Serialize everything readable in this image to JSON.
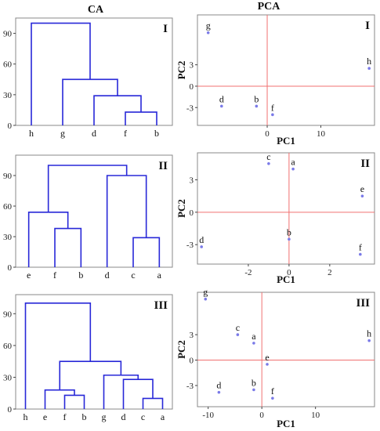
{
  "figure": {
    "col_titles": {
      "ca": "CA",
      "pca": "PCA"
    }
  },
  "chart_data": [
    {
      "type": "dendrogram",
      "panel": "I",
      "title": "CA",
      "ylim": [
        0,
        105
      ],
      "yticks": [
        0,
        30,
        60,
        90
      ],
      "leaves": [
        "h",
        "g",
        "d",
        "f",
        "b"
      ],
      "merges": [
        {
          "a": "f",
          "b": "b",
          "height": 13
        },
        {
          "a": "d",
          "b": "fb",
          "height": 29
        },
        {
          "a": "g",
          "b": "dfb",
          "height": 45
        },
        {
          "a": "h",
          "b": "gdfb",
          "height": 100
        }
      ]
    },
    {
      "type": "scatter",
      "panel": "I",
      "title": "PCA",
      "xlabel": "PC1",
      "ylabel": "PC2",
      "xlim": [
        -13,
        20
      ],
      "ylim": [
        -5.5,
        10
      ],
      "xticks": [
        0,
        10
      ],
      "yticks": [
        -3,
        0,
        3
      ],
      "points": [
        {
          "label": "g",
          "x": -11,
          "y": 7.5
        },
        {
          "label": "h",
          "x": 19,
          "y": 2.5
        },
        {
          "label": "d",
          "x": -8.5,
          "y": -2.8
        },
        {
          "label": "b",
          "x": -2,
          "y": -2.8
        },
        {
          "label": "f",
          "x": 1,
          "y": -4
        }
      ]
    },
    {
      "type": "dendrogram",
      "panel": "II",
      "ylim": [
        0,
        110
      ],
      "yticks": [
        0,
        30,
        60,
        90
      ],
      "leaves": [
        "e",
        "f",
        "b",
        "d",
        "c",
        "a"
      ],
      "merges": [
        {
          "a": "f",
          "b": "b",
          "height": 38
        },
        {
          "a": "e",
          "b": "fb",
          "height": 54
        },
        {
          "a": "c",
          "b": "a",
          "height": 29
        },
        {
          "a": "d",
          "b": "ca",
          "height": 90
        },
        {
          "a": "efb",
          "b": "dca",
          "height": 100
        }
      ]
    },
    {
      "type": "scatter",
      "panel": "II",
      "xlabel": "PC1",
      "ylabel": "PC2",
      "xlim": [
        -4.5,
        4.2
      ],
      "ylim": [
        -4.8,
        5.5
      ],
      "xticks": [
        -2,
        0,
        2
      ],
      "yticks": [
        -3,
        0,
        3
      ],
      "points": [
        {
          "label": "c",
          "x": -1,
          "y": 4.5
        },
        {
          "label": "a",
          "x": 0.2,
          "y": 4
        },
        {
          "label": "e",
          "x": 3.6,
          "y": 1.5
        },
        {
          "label": "d",
          "x": -4.3,
          "y": -3.2
        },
        {
          "label": "b",
          "x": 0,
          "y": -2.5
        },
        {
          "label": "f",
          "x": 3.5,
          "y": -3.9
        }
      ]
    },
    {
      "type": "dendrogram",
      "panel": "III",
      "ylim": [
        0,
        108
      ],
      "yticks": [
        0,
        30,
        60,
        90
      ],
      "leaves": [
        "h",
        "e",
        "f",
        "b",
        "g",
        "d",
        "c",
        "a"
      ],
      "merges": [
        {
          "a": "f",
          "b": "b",
          "height": 13
        },
        {
          "a": "e",
          "b": "fb",
          "height": 18
        },
        {
          "a": "c",
          "b": "a",
          "height": 10
        },
        {
          "a": "d",
          "b": "ca",
          "height": 28
        },
        {
          "a": "g",
          "b": "dca",
          "height": 32
        },
        {
          "a": "efb",
          "b": "gdca",
          "height": 45
        },
        {
          "a": "h",
          "b": "efbgdca",
          "height": 100
        }
      ]
    },
    {
      "type": "scatter",
      "panel": "III",
      "xlabel": "PC1",
      "ylabel": "PC2",
      "xlim": [
        -12,
        21
      ],
      "ylim": [
        -5.5,
        8
      ],
      "xticks": [
        -10,
        0,
        10
      ],
      "yticks": [
        -3,
        0,
        3
      ],
      "points": [
        {
          "label": "g",
          "x": -10.5,
          "y": 7.2
        },
        {
          "label": "c",
          "x": -4.5,
          "y": 3
        },
        {
          "label": "a",
          "x": -1.5,
          "y": 2
        },
        {
          "label": "h",
          "x": 20,
          "y": 2.3
        },
        {
          "label": "e",
          "x": 1,
          "y": -0.5
        },
        {
          "label": "d",
          "x": -8,
          "y": -3.8
        },
        {
          "label": "b",
          "x": -1.5,
          "y": -3.5
        },
        {
          "label": "f",
          "x": 2,
          "y": -4.5
        }
      ]
    }
  ]
}
